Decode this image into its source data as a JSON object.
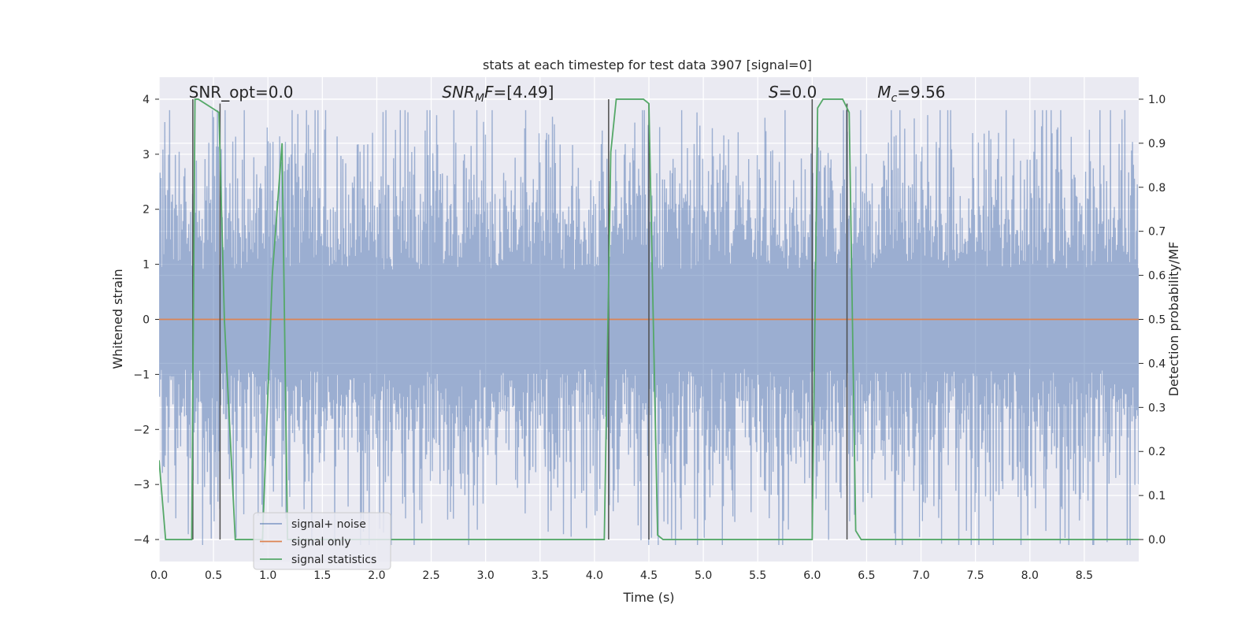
{
  "colors": {
    "plot_background": "#EAEAF2",
    "grid": "#FFFFFF",
    "signal_noise": "#4C72B0",
    "signal_only": "#DD8452",
    "signal_statistics": "#55A868",
    "markers": "#4D4D4D",
    "legend_border": "#CCCCCC"
  },
  "chart_data": {
    "type": "line",
    "title": "stats at each timestep for test data 3907 [signal=0]",
    "xlabel": "Time (s)",
    "ylabel": "Whitened strain",
    "ylabel_right": "Detection probability/MF",
    "xlim": [
      0,
      9.0
    ],
    "ylim": [
      -4.4,
      4.4
    ],
    "ylim_right": [
      -0.05,
      1.05
    ],
    "xticks": [
      0.0,
      0.5,
      1.0,
      1.5,
      2.0,
      2.5,
      3.0,
      3.5,
      4.0,
      4.5,
      5.0,
      5.5,
      6.0,
      6.5,
      7.0,
      7.5,
      8.0,
      8.5
    ],
    "xtick_labels": [
      "0.0",
      "0.5",
      "1.0",
      "1.5",
      "2.0",
      "2.5",
      "3.0",
      "3.5",
      "4.0",
      "4.5",
      "5.0",
      "5.5",
      "6.0",
      "6.5",
      "7.0",
      "7.5",
      "8.0",
      "8.5"
    ],
    "yticks": [
      -4,
      -3,
      -2,
      -1,
      0,
      1,
      2,
      3,
      4
    ],
    "ytick_labels": [
      "−4",
      "−3",
      "−2",
      "−1",
      "0",
      "1",
      "2",
      "3",
      "4"
    ],
    "yticks_right": [
      0.0,
      0.1,
      0.2,
      0.3,
      0.4,
      0.5,
      0.6,
      0.7,
      0.8,
      0.9,
      1.0
    ],
    "ytick_labels_right": [
      "0.0",
      "0.1",
      "0.2",
      "0.3",
      "0.4",
      "0.5",
      "0.6",
      "0.7",
      "0.8",
      "0.9",
      "1.0"
    ],
    "grid": true,
    "legend_placement": "lower-left",
    "annotations": [
      {
        "id": "snr-opt",
        "text": "SNR_opt=0.0",
        "x": 0.2
      },
      {
        "id": "snr-mf",
        "text": "SNR",
        "sub": "M",
        "tail": "F=[4.49]",
        "x": 2.6
      },
      {
        "id": "s-stat",
        "text": "S",
        "tail": "=0.0",
        "x": 5.6
      },
      {
        "id": "mc",
        "text": "M",
        "sub": "c",
        "tail": "=9.56",
        "x": 6.6
      }
    ],
    "series": [
      {
        "name": "signal+ noise",
        "kind": "noise",
        "n_samples": 2048,
        "envelope_core": [
          -1.6,
          1.6
        ],
        "typical_peak_range": [
          -3.3,
          3.3
        ],
        "extremes": [
          -4.1,
          3.8
        ]
      },
      {
        "name": "signal only",
        "kind": "line",
        "x": [
          0.0,
          9.0
        ],
        "y": [
          0.0,
          0.0
        ]
      },
      {
        "name": "signal statistics",
        "kind": "line",
        "axis": "right",
        "x": [
          0.0,
          0.06,
          0.1,
          0.28,
          0.3,
          0.33,
          0.36,
          0.55,
          0.6,
          0.7,
          0.9,
          0.95,
          1.04,
          1.13,
          1.18,
          1.2,
          4.05,
          4.09,
          4.15,
          4.2,
          4.45,
          4.5,
          4.58,
          4.63,
          6.0,
          6.05,
          6.1,
          6.2,
          6.28,
          6.34,
          6.4,
          6.45,
          9.0
        ],
        "y": [
          0.18,
          0.0,
          0.0,
          0.0,
          0.0,
          1.0,
          1.0,
          0.97,
          0.5,
          0.0,
          0.0,
          0.0,
          0.6,
          0.9,
          0.0,
          0.0,
          0.0,
          0.0,
          0.88,
          1.0,
          1.0,
          0.99,
          0.01,
          0.0,
          0.0,
          0.98,
          1.0,
          1.0,
          1.0,
          0.97,
          0.02,
          0.0,
          0.0
        ]
      }
    ],
    "vertical_markers": [
      {
        "x": 0.31,
        "y_range": [
          0.0,
          1.0
        ]
      },
      {
        "x": 0.56,
        "y_range": [
          0.0,
          0.99
        ]
      },
      {
        "x": 4.13,
        "y_range": [
          0.0,
          1.0
        ]
      },
      {
        "x": 4.5,
        "y_range": [
          0.0,
          0.99
        ]
      },
      {
        "x": 6.0,
        "y_range": [
          0.0,
          1.0
        ]
      },
      {
        "x": 6.32,
        "y_range": [
          0.0,
          0.99
        ]
      }
    ],
    "legend": [
      {
        "label": "signal+ noise",
        "color_key": "signal_noise"
      },
      {
        "label": "signal only",
        "color_key": "signal_only"
      },
      {
        "label": "signal statistics",
        "color_key": "signal_statistics"
      }
    ]
  }
}
